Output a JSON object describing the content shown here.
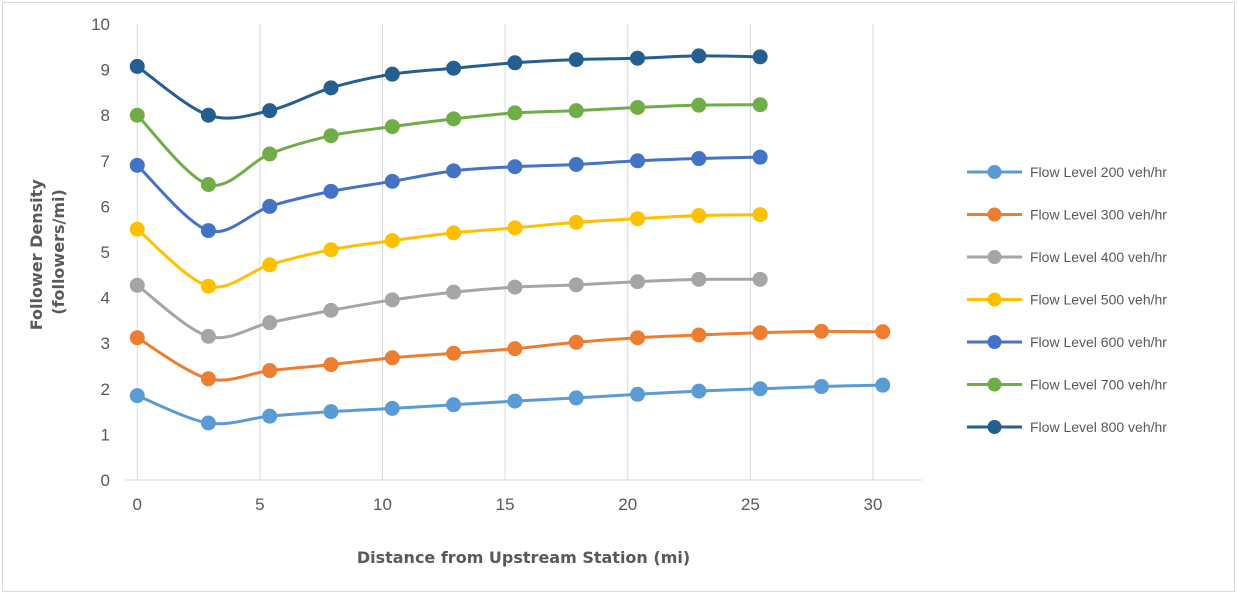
{
  "chart_data": {
    "type": "line",
    "title": "",
    "xlabel": "Distance from Upstream Station (mi)",
    "ylabel_lines": [
      "Follower Density",
      "(followers/mi)"
    ],
    "xlim": [
      -0.5,
      32
    ],
    "ylim": [
      0,
      10
    ],
    "x_ticks": [
      0,
      5,
      10,
      15,
      20,
      25,
      30
    ],
    "y_ticks": [
      0,
      1,
      2,
      3,
      4,
      5,
      6,
      7,
      8,
      9,
      10
    ],
    "grid": "vertical",
    "legend_position": "right",
    "smooth": true,
    "series": [
      {
        "name": "Flow Level 200 veh/hr",
        "color": "#5b9bd5",
        "x": [
          0,
          2.9,
          5.4,
          7.9,
          10.4,
          12.9,
          15.4,
          17.9,
          20.4,
          22.9,
          25.4,
          27.9,
          30.4
        ],
        "y": [
          1.85,
          1.25,
          1.4,
          1.5,
          1.57,
          1.65,
          1.73,
          1.8,
          1.88,
          1.95,
          2.0,
          2.05,
          2.08
        ]
      },
      {
        "name": "Flow Level 300 veh/hr",
        "color": "#ed7d31",
        "x": [
          0,
          2.9,
          5.4,
          7.9,
          10.4,
          12.9,
          15.4,
          17.9,
          20.4,
          22.9,
          25.4,
          27.9,
          30.4
        ],
        "y": [
          3.12,
          2.22,
          2.4,
          2.53,
          2.68,
          2.78,
          2.88,
          3.02,
          3.12,
          3.18,
          3.23,
          3.26,
          3.25
        ]
      },
      {
        "name": "Flow Level 400 veh/hr",
        "color": "#a5a5a5",
        "x": [
          0,
          2.9,
          5.4,
          7.9,
          10.4,
          12.9,
          15.4,
          17.9,
          20.4,
          22.9,
          25.4
        ],
        "y": [
          4.27,
          3.15,
          3.45,
          3.72,
          3.95,
          4.12,
          4.23,
          4.28,
          4.35,
          4.4,
          4.4
        ]
      },
      {
        "name": "Flow Level 500 veh/hr",
        "color": "#ffc000",
        "x": [
          0,
          2.9,
          5.4,
          7.9,
          10.4,
          12.9,
          15.4,
          17.9,
          20.4,
          22.9,
          25.4
        ],
        "y": [
          5.5,
          4.25,
          4.72,
          5.05,
          5.25,
          5.42,
          5.53,
          5.65,
          5.73,
          5.8,
          5.82
        ]
      },
      {
        "name": "Flow Level 600 veh/hr",
        "color": "#4472c4",
        "x": [
          0,
          2.9,
          5.4,
          7.9,
          10.4,
          12.9,
          15.4,
          17.9,
          20.4,
          22.9,
          25.4
        ],
        "y": [
          6.9,
          5.47,
          6.0,
          6.33,
          6.55,
          6.78,
          6.87,
          6.92,
          7.0,
          7.05,
          7.08
        ]
      },
      {
        "name": "Flow Level 700 veh/hr",
        "color": "#70ad47",
        "x": [
          0,
          2.9,
          5.4,
          7.9,
          10.4,
          12.9,
          15.4,
          17.9,
          20.4,
          22.9,
          25.4
        ],
        "y": [
          8.0,
          6.48,
          7.15,
          7.55,
          7.75,
          7.92,
          8.05,
          8.1,
          8.17,
          8.22,
          8.23
        ]
      },
      {
        "name": "Flow Level 800 veh/hr",
        "color": "#255e91",
        "x": [
          0,
          2.9,
          5.4,
          7.9,
          10.4,
          12.9,
          15.4,
          17.9,
          20.4,
          22.9,
          25.4
        ],
        "y": [
          9.07,
          8.0,
          8.1,
          8.6,
          8.9,
          9.03,
          9.15,
          9.22,
          9.25,
          9.3,
          9.28
        ]
      }
    ]
  }
}
